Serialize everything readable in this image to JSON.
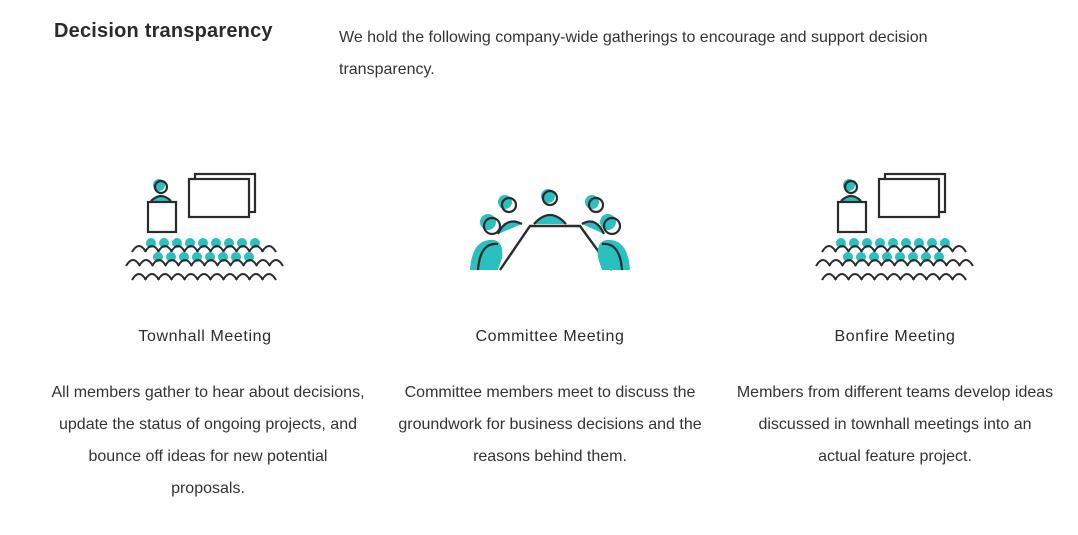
{
  "section": {
    "title": "Decision transparency",
    "intro": "We hold the following company-wide gatherings to encourage and support decision transparency."
  },
  "colors": {
    "accent": "#2bbfbf",
    "outline": "#2b2b2b",
    "text": "#333333"
  },
  "meetings": [
    {
      "icon": "townhall-meeting-icon",
      "title": "Townhall Meeting",
      "description": "All members gather to hear about decisions, update the status of ongoing projects, and bounce off ideas for new potential proposals."
    },
    {
      "icon": "committee-meeting-icon",
      "title": "Committee Meeting",
      "description": "Committee members meet to discuss the groundwork for business decisions and the reasons behind them."
    },
    {
      "icon": "bonfire-meeting-icon",
      "title": "Bonfire Meeting",
      "description": "Members from different teams develop ideas discussed in townhall meetings into an actual feature project."
    }
  ]
}
